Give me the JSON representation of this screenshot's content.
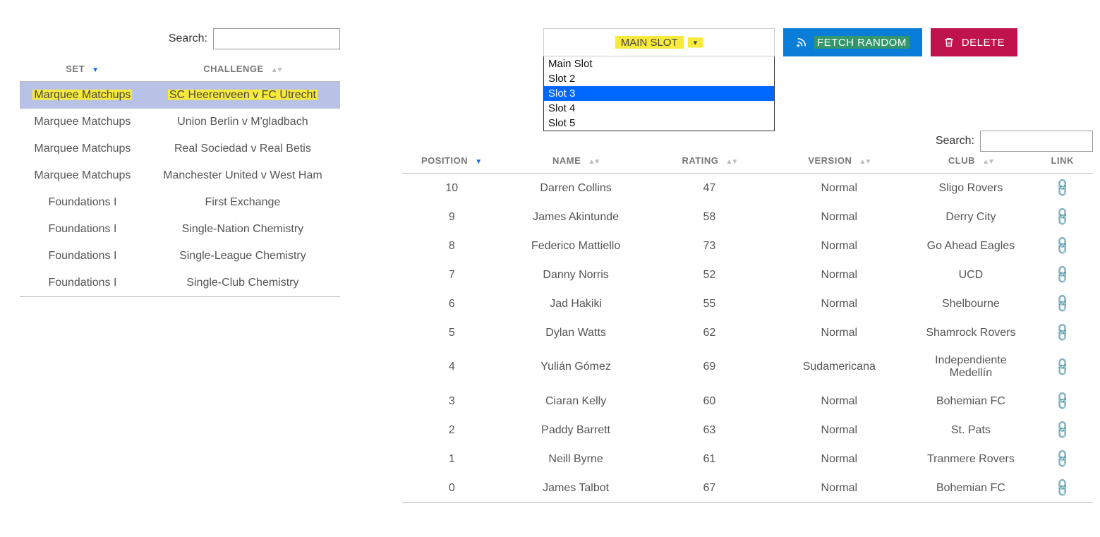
{
  "left": {
    "search_label": "Search:",
    "search_value": "",
    "columns": {
      "set": "Set",
      "challenge": "Challenge"
    },
    "rows": [
      {
        "set": "Marquee Matchups",
        "challenge": "SC Heerenveen v FC Utrecht",
        "selected": true,
        "highlighted": true
      },
      {
        "set": "Marquee Matchups",
        "challenge": "Union Berlin v M'gladbach",
        "selected": false,
        "highlighted": false
      },
      {
        "set": "Marquee Matchups",
        "challenge": "Real Sociedad v Real Betis",
        "selected": false,
        "highlighted": false
      },
      {
        "set": "Marquee Matchups",
        "challenge": "Manchester United v West Ham",
        "selected": false,
        "highlighted": false
      },
      {
        "set": "Foundations I",
        "challenge": "First Exchange",
        "selected": false,
        "highlighted": false
      },
      {
        "set": "Foundations I",
        "challenge": "Single-Nation Chemistry",
        "selected": false,
        "highlighted": false
      },
      {
        "set": "Foundations I",
        "challenge": "Single-League Chemistry",
        "selected": false,
        "highlighted": false
      },
      {
        "set": "Foundations I",
        "challenge": "Single-Club Chemistry",
        "selected": false,
        "highlighted": false
      }
    ]
  },
  "toolbar": {
    "slot_button_label": "MAIN SLOT",
    "slot_options": [
      {
        "label": "Main Slot",
        "selected": false
      },
      {
        "label": "Slot 2",
        "selected": false
      },
      {
        "label": "Slot 3",
        "selected": true
      },
      {
        "label": "Slot 4",
        "selected": false
      },
      {
        "label": "Slot 5",
        "selected": false
      }
    ],
    "fetch_label": "FETCH RANDOM",
    "delete_label": "DELETE"
  },
  "right": {
    "search_label": "Search:",
    "search_value": "",
    "columns": {
      "position": "Position",
      "name": "Name",
      "rating": "Rating",
      "version": "Version",
      "club": "Club",
      "link": "Link"
    },
    "rows": [
      {
        "position": "10",
        "name": "Darren Collins",
        "rating": "47",
        "version": "Normal",
        "club": "Sligo Rovers"
      },
      {
        "position": "9",
        "name": "James Akintunde",
        "rating": "58",
        "version": "Normal",
        "club": "Derry City"
      },
      {
        "position": "8",
        "name": "Federico Mattiello",
        "rating": "73",
        "version": "Normal",
        "club": "Go Ahead Eagles"
      },
      {
        "position": "7",
        "name": "Danny Norris",
        "rating": "52",
        "version": "Normal",
        "club": "UCD"
      },
      {
        "position": "6",
        "name": "Jad Hakiki",
        "rating": "55",
        "version": "Normal",
        "club": "Shelbourne"
      },
      {
        "position": "5",
        "name": "Dylan Watts",
        "rating": "62",
        "version": "Normal",
        "club": "Shamrock Rovers"
      },
      {
        "position": "4",
        "name": "Yulián Gómez",
        "rating": "69",
        "version": "Sudamericana",
        "club": "Independiente Medellín"
      },
      {
        "position": "3",
        "name": "Ciaran Kelly",
        "rating": "60",
        "version": "Normal",
        "club": "Bohemian FC"
      },
      {
        "position": "2",
        "name": "Paddy Barrett",
        "rating": "63",
        "version": "Normal",
        "club": "St. Pats"
      },
      {
        "position": "1",
        "name": "Neill Byrne",
        "rating": "61",
        "version": "Normal",
        "club": "Tranmere Rovers"
      },
      {
        "position": "0",
        "name": "James Talbot",
        "rating": "67",
        "version": "Normal",
        "club": "Bohemian FC"
      }
    ]
  },
  "colors": {
    "accent_blue": "#0a7dd8",
    "accent_red": "#c0134e",
    "highlight_yellow": "#f7ea3b",
    "highlight_green": "rgba(74,163,49,0.65)",
    "row_selected": "#b8c2e6",
    "dropdown_selected": "#0067ff",
    "link": "#1f8fff",
    "sort_active": "#0d6efd"
  }
}
